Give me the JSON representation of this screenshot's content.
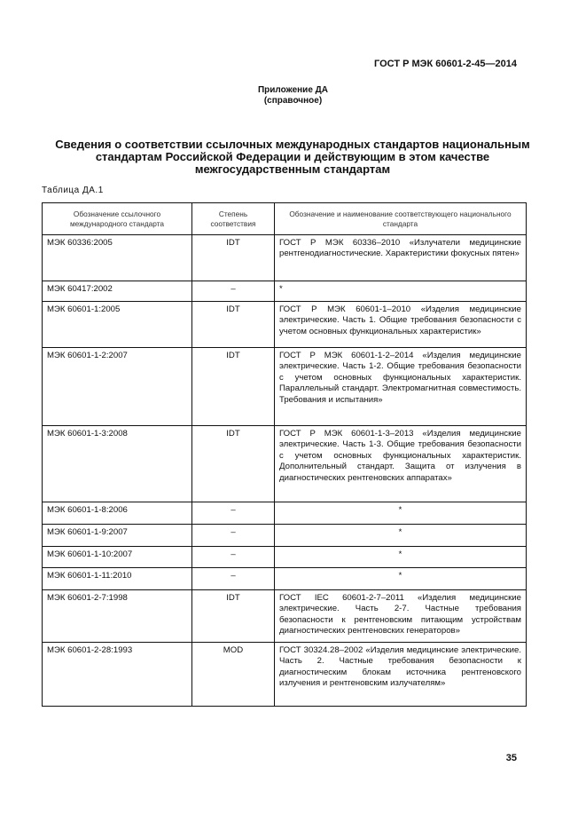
{
  "header": {
    "doc_code": "ГОСТ Р МЭК 60601-2-45—2014"
  },
  "appendix": {
    "title": "Приложение ДА",
    "subtitle": "(справочное)"
  },
  "title": "Сведения о соответствии ссылочных международных стандартов национальным стандартам Российской Федерации и действующим в этом качестве межгосударственным стандартам",
  "table_label": "Таблица ДА.1",
  "table": {
    "headers": [
      "Обозначение ссылочного международного стандарта",
      "Степень соответствия",
      "Обозначение и наименование соответствующего национального стандарта"
    ],
    "rows": [
      {
        "intl": "МЭК 60336:2005",
        "degree": "IDT",
        "national": "ГОСТ Р МЭК 60336–2010 «Излучатели медицинские рентгенодиагностические. Характеристики фокусных пятен»"
      },
      {
        "intl": "МЭК 60417:2002",
        "degree": "–",
        "national": "*"
      },
      {
        "intl": "МЭК 60601-1:2005",
        "degree": "IDT",
        "national": "ГОСТ Р МЭК 60601-1–2010 «Изделия медицинские электрические. Часть 1. Общие требования безопасности с учетом основных функциональных характеристик»"
      },
      {
        "intl": "МЭК 60601-1-2:2007",
        "degree": "IDT",
        "national": "ГОСТ Р МЭК 60601-1-2–2014 «Изделия медицинские электрические. Часть 1-2. Общие требования безопасности с учетом основных функциональных характеристик. Параллельный стандарт. Электромагнитная совместимость. Требования и испытания»"
      },
      {
        "intl": "МЭК 60601-1-3:2008",
        "degree": "IDT",
        "national": "ГОСТ Р МЭК 60601-1-3–2013 «Изделия медицинские электрические. Часть 1-3. Общие требования безопасности с учетом основных функциональных характеристик. Дополнительный стандарт. Защита от излучения в диагностических рентгеновских аппаратах»"
      },
      {
        "intl": "МЭК 60601-1-8:2006",
        "degree": "–",
        "national": "*"
      },
      {
        "intl": "МЭК 60601-1-9:2007",
        "degree": "–",
        "national": "*"
      },
      {
        "intl": "МЭК 60601-1-10:2007",
        "degree": "–",
        "national": "*"
      },
      {
        "intl": "МЭК 60601-1-11:2010",
        "degree": "–",
        "national": "*"
      },
      {
        "intl": "МЭК 60601-2-7:1998",
        "degree": "IDT",
        "national": "ГОСТ IEC 60601-2-7–2011 «Изделия медицинские электрические. Часть 2-7. Частные требования безопасности к рентгеновским питающим устройствам диагностических рентгеновских генераторов»"
      },
      {
        "intl": "МЭК 60601-2-28:1993",
        "degree": "MOD",
        "national": "ГОСТ 30324.28–2002 «Изделия медицинские электрические. Часть 2. Частные требования безопасности к диагностическим блокам источника рентгеновского излучения и рентгеновским излучателям»"
      }
    ]
  },
  "page_number": "35"
}
